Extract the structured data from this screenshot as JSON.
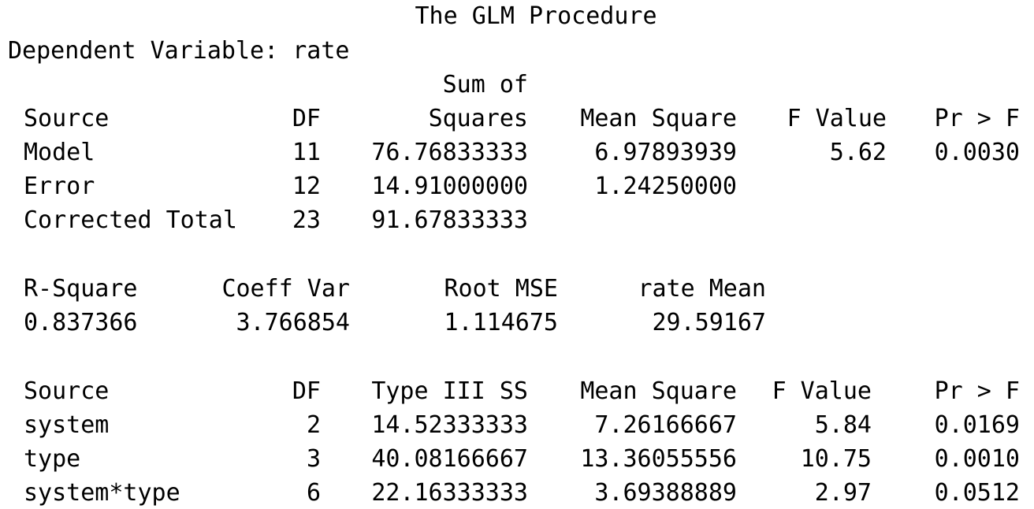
{
  "title": "The GLM Procedure",
  "dependent_variable": "Dependent Variable: rate",
  "anova": {
    "header_top": "Sum of",
    "headers": [
      "Source",
      "DF",
      "Squares",
      "Mean Square",
      "F Value",
      "Pr > F"
    ],
    "rows": [
      {
        "source": "Model",
        "df": "11",
        "ss": "76.76833333",
        "ms": "6.97893939",
        "f": "5.62",
        "p": "0.0030"
      },
      {
        "source": "Error",
        "df": "12",
        "ss": "14.91000000",
        "ms": "1.24250000",
        "f": "",
        "p": ""
      },
      {
        "source": "Corrected Total",
        "df": "23",
        "ss": "91.67833333",
        "ms": "",
        "f": "",
        "p": ""
      }
    ]
  },
  "fit": {
    "headers": [
      "R-Square",
      "Coeff Var",
      "Root MSE",
      "rate Mean"
    ],
    "values": [
      "0.837366",
      "3.766854",
      "1.114675",
      "29.59167"
    ]
  },
  "type3": {
    "headers": [
      "Source",
      "DF",
      "Type III SS",
      "Mean Square",
      "F Value",
      "Pr > F"
    ],
    "rows": [
      {
        "source": "system",
        "df": "2",
        "ss": "14.52333333",
        "ms": "7.26166667",
        "f": "5.84",
        "p": "0.0169"
      },
      {
        "source": "type",
        "df": "3",
        "ss": "40.08166667",
        "ms": "13.36055556",
        "f": "10.75",
        "p": "0.0010"
      },
      {
        "source": "system*type",
        "df": "6",
        "ss": "22.16333333",
        "ms": "3.69388889",
        "f": "2.97",
        "p": "0.0512"
      }
    ]
  }
}
